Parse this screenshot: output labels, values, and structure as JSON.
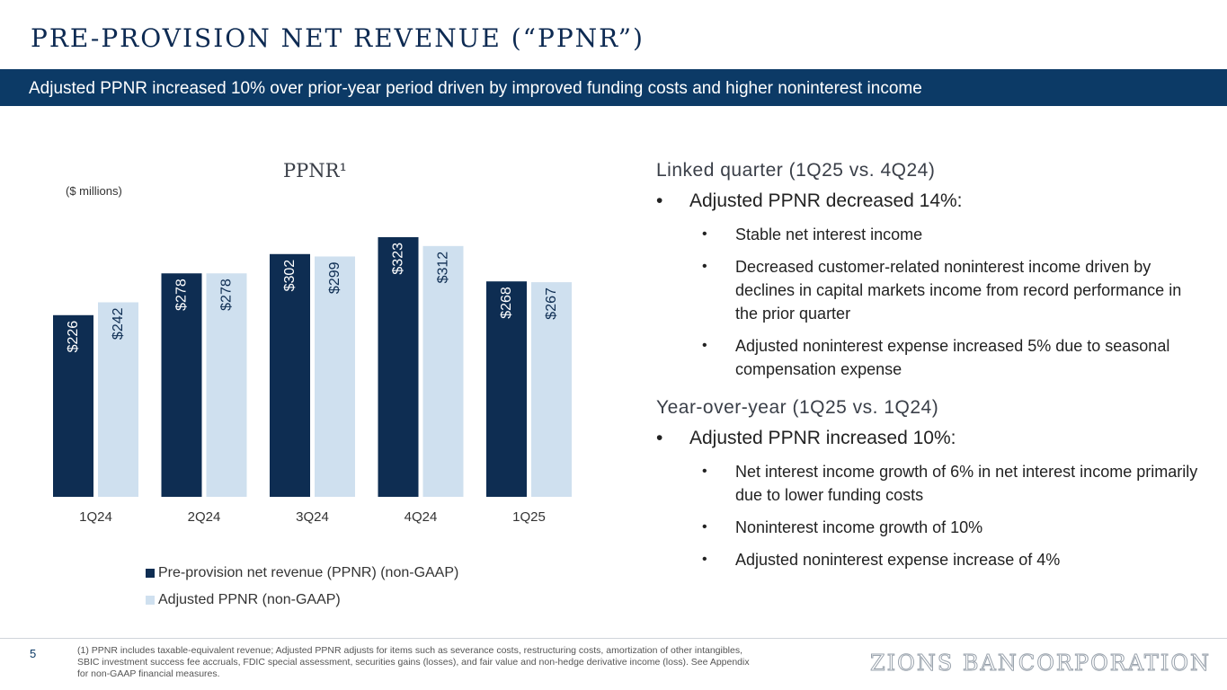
{
  "header": {
    "title": "PRE-PROVISION NET REVENUE (“PPNR”)",
    "banner": "Adjusted PPNR increased 10% over prior-year period driven by improved funding costs and higher noninterest income"
  },
  "chart_data": {
    "type": "bar",
    "title": "PPNR¹",
    "units": "($ millions)",
    "categories": [
      "1Q24",
      "2Q24",
      "3Q24",
      "4Q24",
      "1Q25"
    ],
    "series": [
      {
        "name": "Pre-provision net revenue (PPNR) (non-GAAP)",
        "values": [
          226,
          278,
          302,
          323,
          268
        ],
        "labels": [
          "$226",
          "$278",
          "$302",
          "$323",
          "$268"
        ],
        "color": "#0e2d52"
      },
      {
        "name": "Adjusted PPNR (non-GAAP)",
        "values": [
          242,
          278,
          299,
          312,
          267
        ],
        "labels": [
          "$242",
          "$278",
          "$299",
          "$312",
          "$267"
        ],
        "color": "#cfe0ef"
      }
    ],
    "ylim": [
      0,
      323
    ],
    "legend_position": "bottom"
  },
  "commentary": {
    "linked_quarter": {
      "heading": "Linked quarter (1Q25 vs. 4Q24)",
      "main": "Adjusted PPNR decreased 14%:",
      "subs": [
        "Stable net interest income",
        "Decreased customer-related noninterest income driven by declines in capital markets income from record performance in the prior quarter",
        "Adjusted noninterest expense increased 5% due to seasonal compensation expense"
      ]
    },
    "year_over_year": {
      "heading": "Year-over-year (1Q25 vs. 1Q24)",
      "main": "Adjusted PPNR increased 10%:",
      "subs": [
        "Net interest income growth of 6% in net interest income primarily due to lower funding costs",
        "Noninterest income growth of 10%",
        "Adjusted noninterest expense increase of 4%"
      ]
    }
  },
  "footer": {
    "page_number": "5",
    "footnote": "(1) PPNR includes taxable-equivalent revenue; Adjusted PPNR adjusts for items such as severance costs, restructuring costs, amortization of other intangibles, SBIC investment success fee accruals,  FDIC special assessment, securities gains (losses), and fair value and non-hedge derivative income (loss). See Appendix for non-GAAP financial measures.",
    "logo": "ZIONS BANCORPORATION"
  }
}
